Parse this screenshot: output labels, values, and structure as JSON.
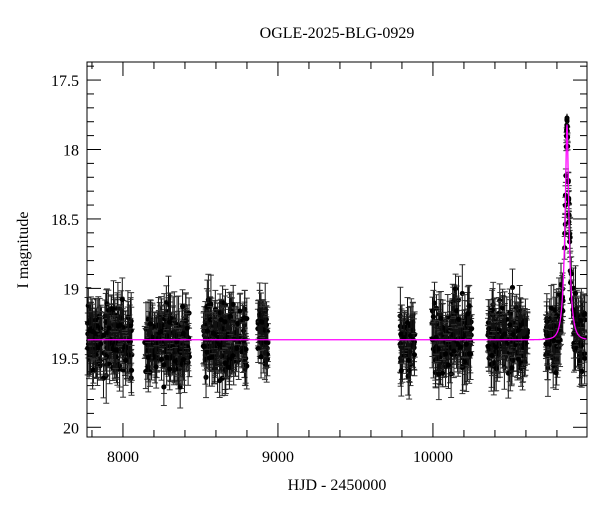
{
  "chart_data": {
    "type": "scatter",
    "title": "OGLE-2025-BLG-0929",
    "xlabel": "HJD - 2450000",
    "ylabel": "I magnitude",
    "xlim": [
      7768,
      10994
    ],
    "ylim": [
      20.07,
      17.37
    ],
    "y_inverted": true,
    "x_ticks": [
      8000,
      9000,
      10000
    ],
    "x_tick_labels": [
      "8000",
      "9000",
      "10000"
    ],
    "y_ticks": [
      17.5,
      18,
      18.5,
      19,
      19.5,
      20
    ],
    "y_tick_labels": [
      "17.5",
      "18",
      "18.5",
      "19",
      "19.5",
      "20"
    ],
    "grid": false,
    "series": [
      {
        "kind": "photometry with error bars",
        "color": "#000000",
        "baseline_mag": 19.37,
        "scatter_mag": 0.2,
        "typical_error_mag": 0.15,
        "seasons": [
          {
            "start": 7770,
            "end": 8060
          },
          {
            "start": 8140,
            "end": 8430
          },
          {
            "start": 8516,
            "end": 8800
          },
          {
            "start": 8870,
            "end": 8935
          },
          {
            "start": 9787,
            "end": 9884
          },
          {
            "start": 9994,
            "end": 10252
          },
          {
            "start": 10355,
            "end": 10613
          },
          {
            "start": 10723,
            "end": 10981
          }
        ],
        "peak_observed_mag": 17.75
      },
      {
        "kind": "microlensing model",
        "color": "#ff00ff",
        "baseline_mag": 19.37,
        "peak_mag": 17.82,
        "t0": 10865,
        "u0": 0.245,
        "tE": 30
      }
    ]
  }
}
